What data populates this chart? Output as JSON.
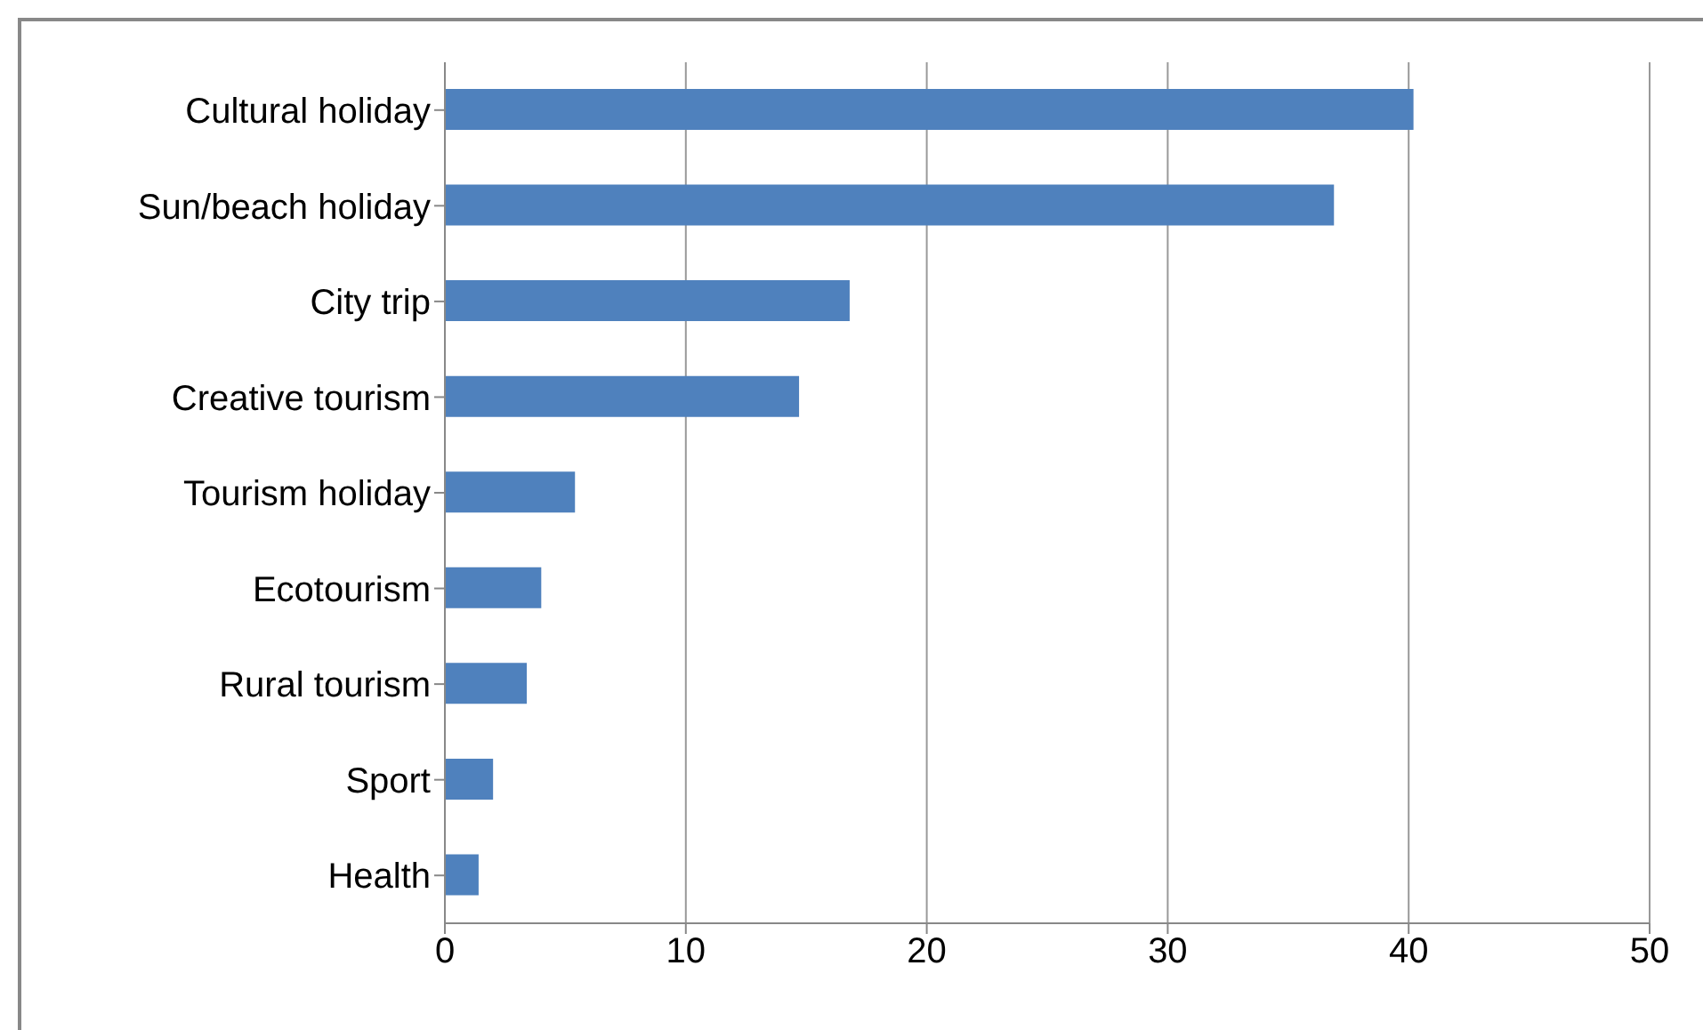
{
  "chart_data": {
    "type": "bar",
    "orientation": "horizontal",
    "categories": [
      "Cultural  holiday",
      "Sun/beach holiday",
      "City trip",
      "Creative tourism",
      "Tourism holiday",
      "Ecotourism",
      "Rural tourism",
      "Sport",
      "Health"
    ],
    "values": [
      40.2,
      36.9,
      16.8,
      14.7,
      5.4,
      4.0,
      3.4,
      2.0,
      1.4
    ],
    "color": "#4f81bd",
    "xlim": [
      0,
      50
    ],
    "xticks": [
      0,
      10,
      20,
      30,
      40,
      50
    ],
    "grid": "x"
  }
}
